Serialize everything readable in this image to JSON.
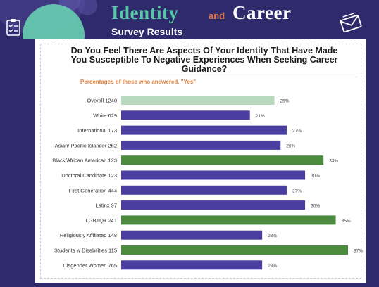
{
  "header": {
    "title_part1": "Identity",
    "title_and": "and",
    "title_part2": "Career",
    "subtitle": "Survey Results"
  },
  "icons": {
    "left": "clipboard-checklist-icon",
    "right": "envelope-icon"
  },
  "colors": {
    "background": "#2f2a6b",
    "bar_purple": "#4a3fa0",
    "bar_green": "#4b8a3f",
    "bar_lightgreen": "#b9d9bf",
    "accent_teal": "#55c9a6",
    "accent_orange": "#e4794c"
  },
  "chart_data": {
    "type": "bar",
    "orientation": "horizontal",
    "title": "Do You Feel There Are Aspects Of Your Identity That Have Made You Susceptible To Negative Experiences When Seeking Career Guidance?",
    "subtitle": "Percentages of those who answered, \"Yes\"",
    "categories": [
      "Overall 1240",
      "White 629",
      "International 173",
      "Asian/ Pacific Islander 262",
      "Black/African American 123",
      "Doctoral Candidate 123",
      "First Generation 444",
      "Latinx 97",
      "LGBTQ+ 241",
      "Religiously Affiliated 148",
      "Students w Disabilities 115",
      "Cisgender Women 765"
    ],
    "values": [
      25,
      21,
      27,
      26,
      33,
      30,
      27,
      30,
      35,
      23,
      37,
      23
    ],
    "value_labels": [
      "25%",
      "21%",
      "27%",
      "26%",
      "33%",
      "30%",
      "27%",
      "30%",
      "35%",
      "23%",
      "37%",
      "23%"
    ],
    "bar_colors": [
      "#b9d9bf",
      "#4a3fa0",
      "#4a3fa0",
      "#4a3fa0",
      "#4b8a3f",
      "#4a3fa0",
      "#4a3fa0",
      "#4a3fa0",
      "#4b8a3f",
      "#4a3fa0",
      "#4b8a3f",
      "#4a3fa0"
    ],
    "xlim": [
      0,
      37
    ],
    "grid": false
  }
}
